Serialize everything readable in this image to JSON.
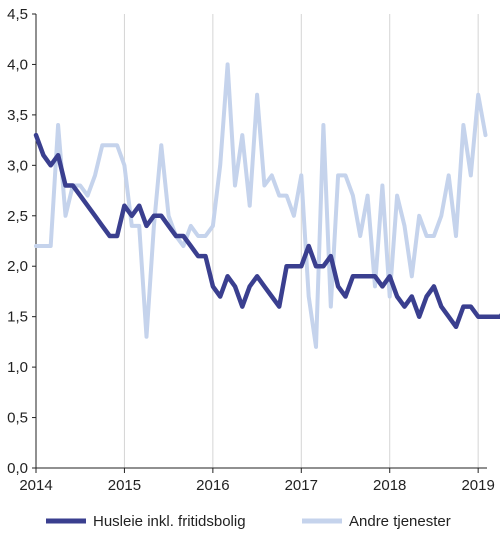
{
  "chart_data": {
    "type": "line",
    "title": "",
    "xlabel": "",
    "ylabel": "",
    "xlim": [
      2014.0,
      2019.1
    ],
    "ylim": [
      0,
      4.5
    ],
    "yticks": [
      "0,0",
      "0,5",
      "1,0",
      "1,5",
      "2,0",
      "2,5",
      "3,0",
      "3,5",
      "4,0",
      "4,5"
    ],
    "xticks": [
      "2014",
      "2015",
      "2016",
      "2017",
      "2018",
      "2019"
    ],
    "grid": "vertical",
    "legend": "bottom",
    "series": [
      {
        "name": "Husleie inkl. fritidsbolig",
        "color": "#3a3f8f",
        "values": [
          3.3,
          3.1,
          3.0,
          3.1,
          2.8,
          2.8,
          2.7,
          2.6,
          2.5,
          2.4,
          2.3,
          2.3,
          2.6,
          2.5,
          2.6,
          2.4,
          2.5,
          2.5,
          2.4,
          2.3,
          2.3,
          2.2,
          2.1,
          2.1,
          1.8,
          1.7,
          1.9,
          1.8,
          1.6,
          1.8,
          1.9,
          1.8,
          1.7,
          1.6,
          2.0,
          2.0,
          2.0,
          2.2,
          2.0,
          2.0,
          2.1,
          1.8,
          1.7,
          1.9,
          1.9,
          1.9,
          1.9,
          1.8,
          1.9,
          1.7,
          1.6,
          1.7,
          1.5,
          1.7,
          1.8,
          1.6,
          1.5,
          1.4,
          1.6,
          1.6,
          1.5,
          1.5,
          1.5,
          1.5,
          1.6
        ]
      },
      {
        "name": "Andre tjenester",
        "color": "#c5d3ec",
        "values": [
          2.2,
          2.2,
          2.2,
          3.4,
          2.5,
          2.8,
          2.8,
          2.7,
          2.9,
          3.2,
          3.2,
          3.2,
          3.0,
          2.4,
          2.4,
          1.3,
          2.4,
          3.2,
          2.5,
          2.3,
          2.2,
          2.4,
          2.3,
          2.3,
          2.4,
          3.0,
          4.0,
          2.8,
          3.3,
          2.6,
          3.7,
          2.8,
          2.9,
          2.7,
          2.7,
          2.5,
          2.9,
          1.7,
          1.2,
          3.4,
          1.6,
          2.9,
          2.9,
          2.7,
          2.3,
          2.7,
          1.8,
          2.8,
          1.7,
          2.7,
          2.4,
          1.9,
          2.5,
          2.3,
          2.3,
          2.5,
          2.9,
          2.3,
          3.4,
          2.9,
          3.7,
          3.3
        ]
      }
    ]
  }
}
